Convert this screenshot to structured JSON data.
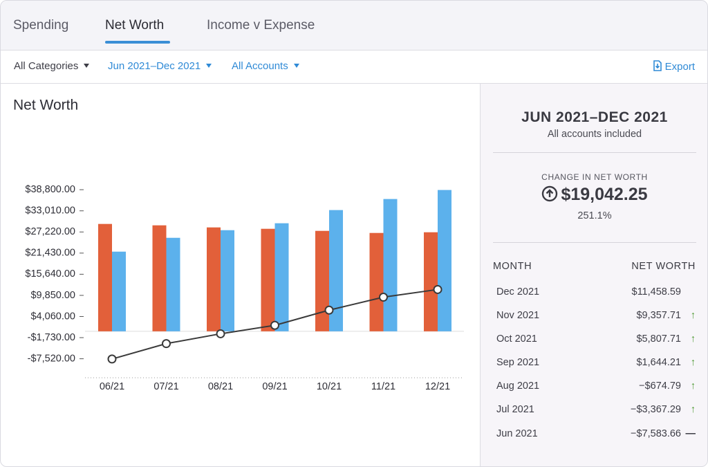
{
  "tabs": [
    "Spending",
    "Net Worth",
    "Income v Expense"
  ],
  "filters": [
    "All Categories",
    "Jun 2021–Dec 2021",
    "All Accounts"
  ],
  "export": "Export",
  "chart_data": {
    "type": "bar",
    "title": "Net Worth",
    "categories": [
      "06/21",
      "07/21",
      "08/21",
      "09/21",
      "10/21",
      "11/21",
      "12/21"
    ],
    "series": [
      {
        "color": "#e2603a",
        "values": [
          29420,
          29040,
          28470,
          28090,
          27520,
          26950,
          27140
        ]
      },
      {
        "color": "#5cb1ec",
        "values": [
          21830,
          25620,
          27710,
          29610,
          33220,
          36250,
          38720
        ]
      },
      {
        "type": "line",
        "color": "#3a3a3a",
        "values": [
          -7583.66,
          -3367.29,
          -674.79,
          1644.21,
          5807.71,
          9357.71,
          11458.59
        ]
      }
    ],
    "ylim": [
      -12720,
      41300
    ],
    "yticks": [
      {
        "value": 38800,
        "label": "$38,800.00"
      },
      {
        "value": 33010,
        "label": "$33,010.00"
      },
      {
        "value": 27220,
        "label": "$27,220.00"
      },
      {
        "value": 21430,
        "label": "$21,430.00"
      },
      {
        "value": 15640,
        "label": "$15,640.00"
      },
      {
        "value": 9850,
        "label": "$9,850.00"
      },
      {
        "value": 4060,
        "label": "$4,060.00"
      },
      {
        "value": -1730,
        "label": "-$1,730.00"
      },
      {
        "value": -7520,
        "label": "-$7,520.00"
      }
    ]
  },
  "summary": {
    "title": "JUN 2021–DEC 2021",
    "subtitle": "All accounts included",
    "change_label": "CHANGE IN NET WORTH",
    "change": "$19,042.25",
    "percent": "251.1%",
    "columns": [
      "MONTH",
      "NET WORTH"
    ],
    "rows": [
      [
        "Dec 2021",
        "$11,458.59"
      ],
      [
        "Nov 2021",
        "$9,357.71"
      ],
      [
        "Oct 2021",
        "$5,807.71"
      ],
      [
        "Sep 2021",
        "$1,644.21"
      ],
      [
        "Aug 2021",
        "−$674.79"
      ],
      [
        "Jul 2021",
        "−$3,367.29"
      ],
      [
        "Jun 2021",
        "−$7,583.66"
      ]
    ]
  }
}
